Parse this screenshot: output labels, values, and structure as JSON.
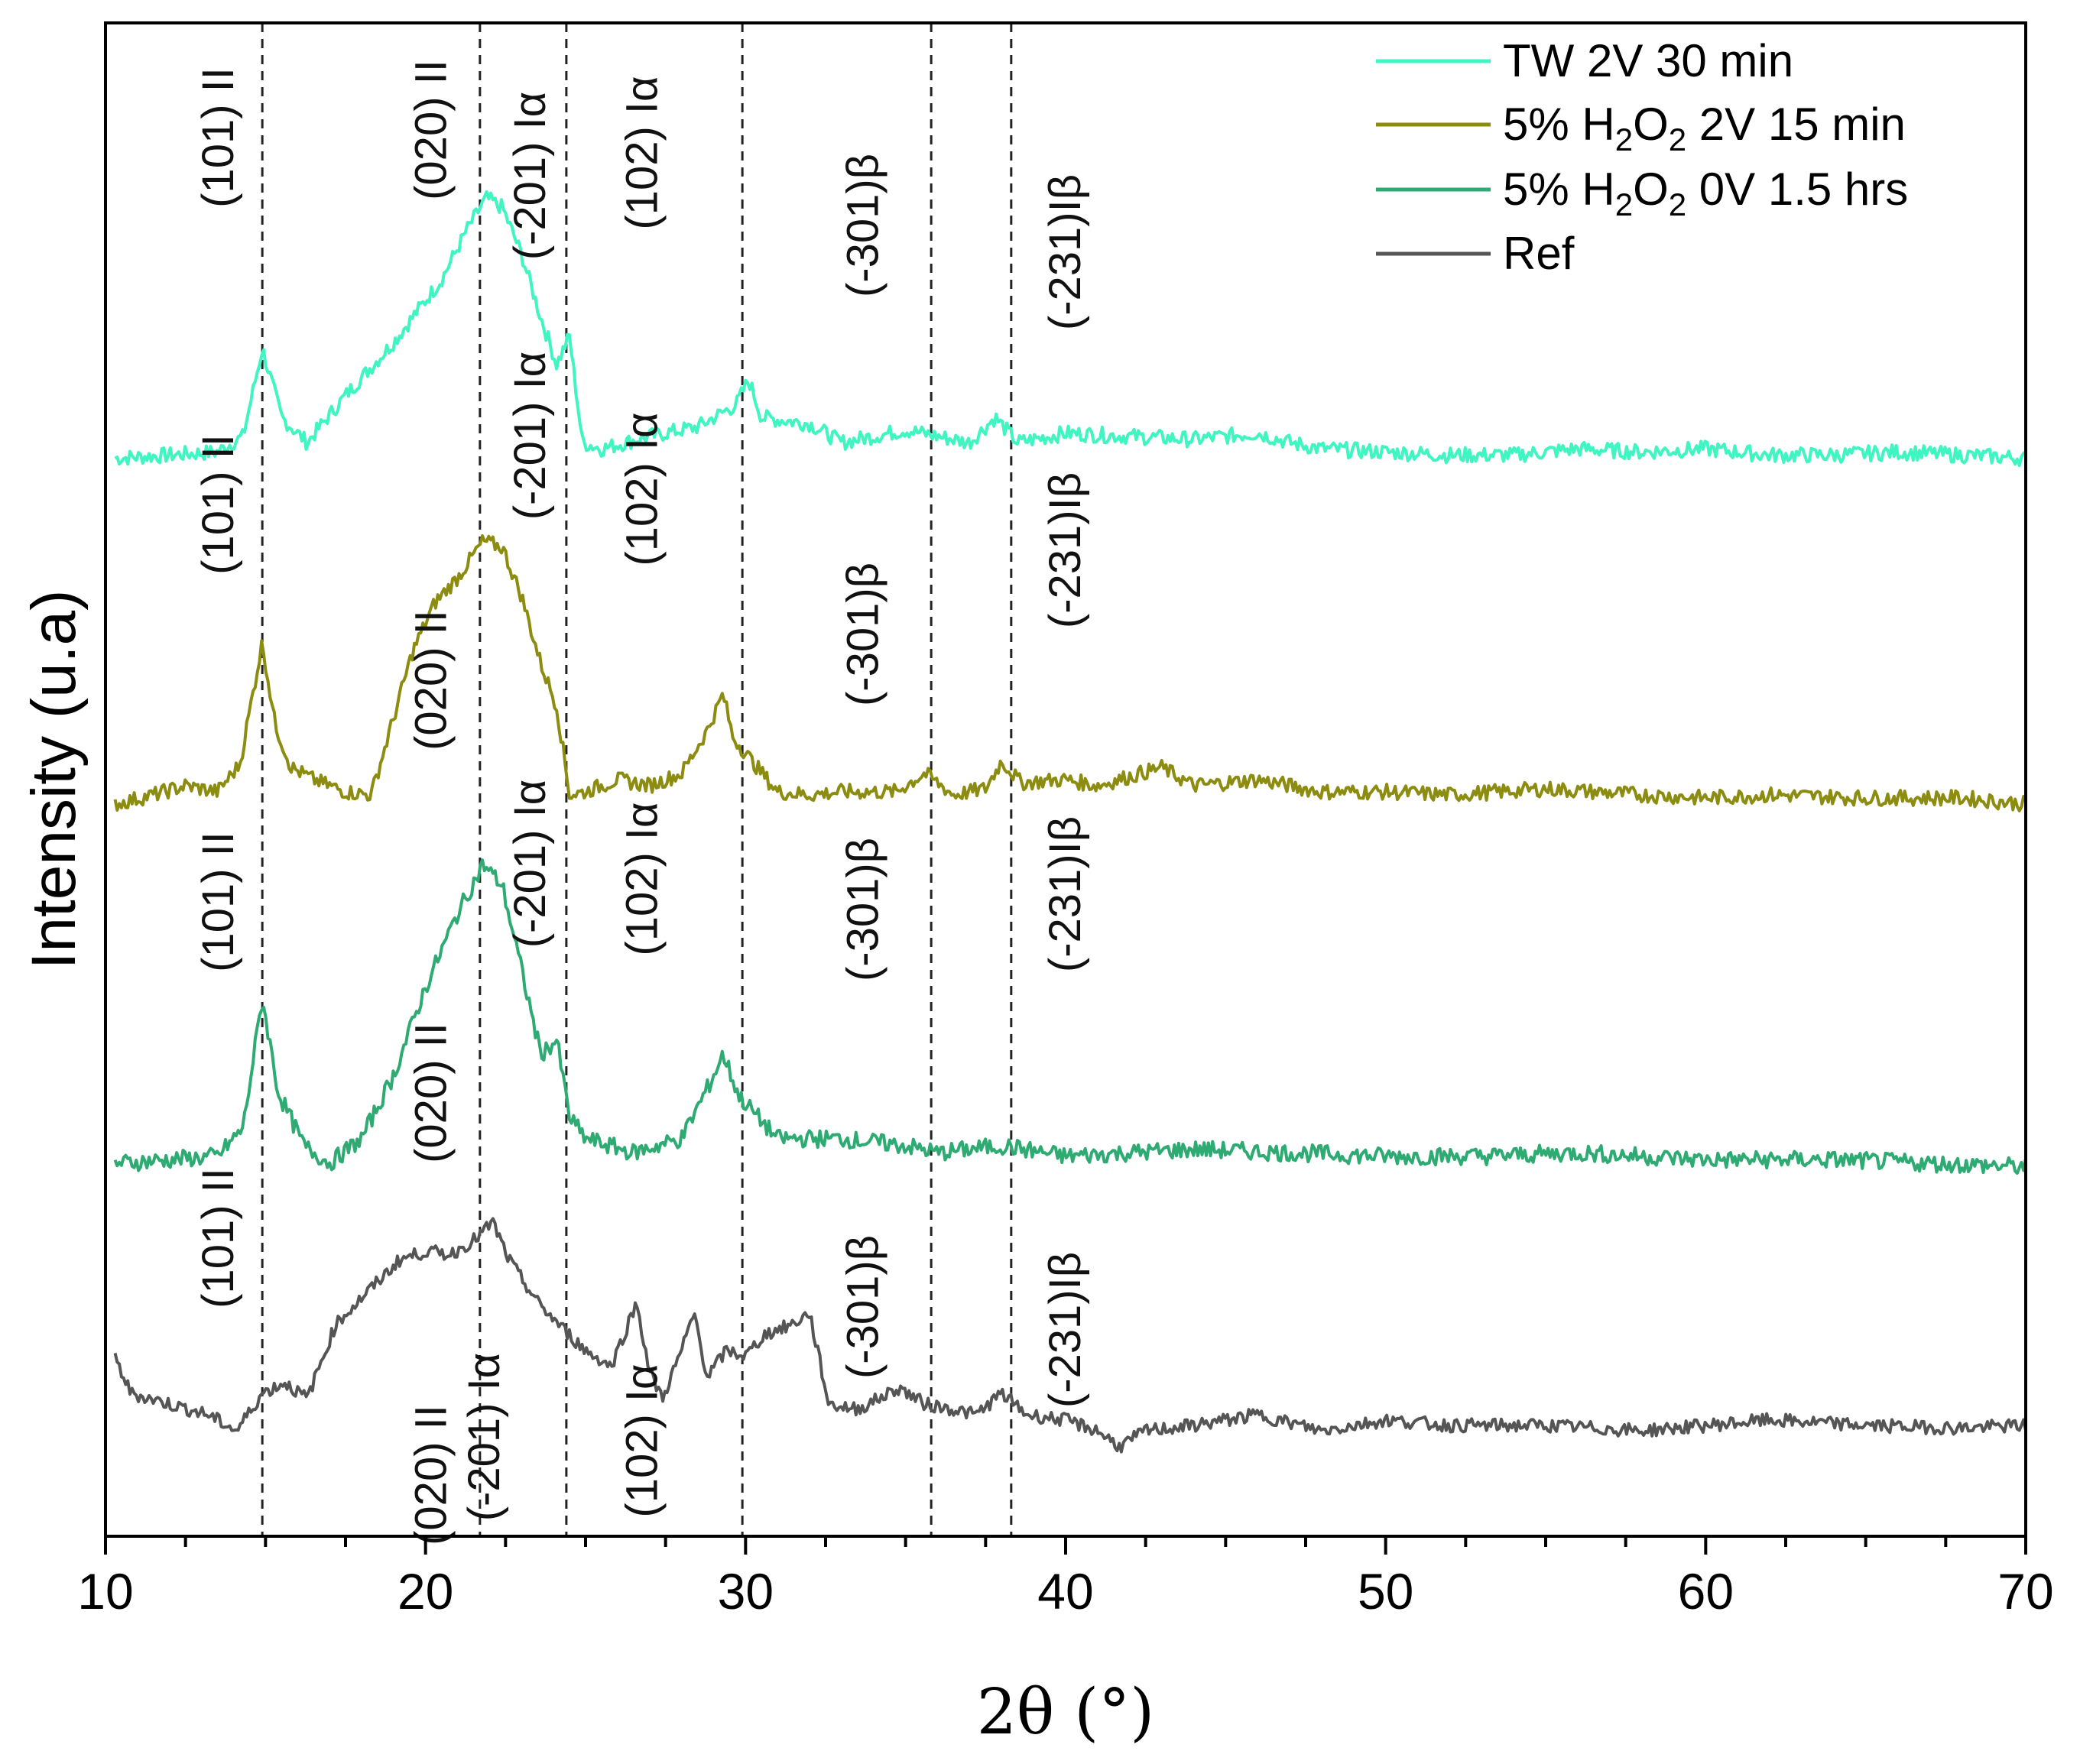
{
  "chart_data": {
    "type": "line",
    "title": "",
    "xlabel": "2θ (°)",
    "ylabel": "Intensity (u.a)",
    "xlim": [
      10,
      70
    ],
    "x_ticks": [
      10,
      20,
      30,
      40,
      50,
      60,
      70
    ],
    "grid": false,
    "legend_position": "top-right",
    "reference_lines_2theta": [
      14.9,
      21.7,
      24.4,
      29.9,
      35.8,
      38.3
    ],
    "annotations": [
      {
        "text": "(101) II",
        "x": 14.9
      },
      {
        "text": "(020) II",
        "x": 21.5
      },
      {
        "text": "(-201) Iα",
        "x": 24.4
      },
      {
        "text": "(102) Iα",
        "x": 28.0
      },
      {
        "text": "(-301)β",
        "x": 34.8
      },
      {
        "text": "(-231)Iβ",
        "x": 39.5
      }
    ],
    "series": [
      {
        "name": "TW 2V 30 min",
        "legend_parts": [
          "TW 2V 30 min"
        ],
        "color": "#3ff5c2",
        "x": [
          10.3,
          12,
          13.5,
          14.3,
          14.9,
          15.5,
          16.3,
          17.5,
          19,
          20.5,
          21.3,
          21.9,
          22.4,
          23,
          23.6,
          24.1,
          24.5,
          24.9,
          25.5,
          27,
          28.5,
          29.7,
          30.1,
          30.5,
          32,
          33,
          35,
          37,
          37.8,
          38.5,
          40,
          42,
          44,
          46,
          47,
          48,
          50,
          52,
          54,
          56,
          58,
          60,
          62,
          64,
          66,
          68,
          70
        ],
        "values": [
          0.05,
          0.06,
          0.07,
          0.12,
          0.4,
          0.18,
          0.1,
          0.25,
          0.42,
          0.62,
          0.78,
          0.88,
          0.85,
          0.7,
          0.5,
          0.35,
          0.44,
          0.1,
          0.08,
          0.12,
          0.15,
          0.22,
          0.3,
          0.18,
          0.16,
          0.1,
          0.14,
          0.1,
          0.18,
          0.1,
          0.13,
          0.12,
          0.11,
          0.13,
          0.1,
          0.08,
          0.07,
          0.06,
          0.06,
          0.08,
          0.07,
          0.08,
          0.06,
          0.06,
          0.07,
          0.06,
          0.05
        ]
      },
      {
        "name": "5% H2O2 2V 15 min",
        "legend_parts": [
          "5% H",
          "2",
          "O",
          "2",
          " 2V 15 min"
        ],
        "color": "#8c8c10",
        "x": [
          10.3,
          11.5,
          12.5,
          13.5,
          14.2,
          14.9,
          15.3,
          15.8,
          16.5,
          17.5,
          18.3,
          19,
          19.6,
          20.3,
          21,
          21.8,
          22.4,
          23,
          23.6,
          24.1,
          24.5,
          25,
          26,
          27,
          28,
          28.8,
          29.3,
          29.6,
          30.2,
          31,
          32,
          33,
          34.7,
          35.6,
          36.5,
          37.5,
          38,
          38.6,
          40,
          41,
          43,
          44,
          46,
          48,
          50,
          52,
          55,
          58,
          60,
          62,
          65,
          68,
          70
        ],
        "values": [
          0.02,
          0.05,
          0.08,
          0.06,
          0.15,
          0.55,
          0.28,
          0.14,
          0.1,
          0.06,
          0.05,
          0.3,
          0.52,
          0.68,
          0.76,
          0.88,
          0.86,
          0.7,
          0.48,
          0.34,
          0.05,
          0.06,
          0.1,
          0.08,
          0.12,
          0.26,
          0.38,
          0.24,
          0.16,
          0.06,
          0.05,
          0.06,
          0.06,
          0.12,
          0.05,
          0.07,
          0.16,
          0.09,
          0.1,
          0.08,
          0.14,
          0.08,
          0.1,
          0.06,
          0.06,
          0.05,
          0.07,
          0.05,
          0.04,
          0.05,
          0.04,
          0.04,
          0.02
        ]
      },
      {
        "name": "5% H2O2 0V 1.5 hrs",
        "legend_parts": [
          "5% H",
          "2",
          "O",
          "2",
          " 0V 1.5 hrs"
        ],
        "color": "#2eaa73",
        "x": [
          10.3,
          12,
          13.5,
          14.3,
          14.9,
          15.4,
          16.2,
          17,
          18,
          19,
          20,
          21,
          21.8,
          22.4,
          23,
          23.6,
          24.1,
          24.5,
          25,
          26.5,
          28,
          28.9,
          29.3,
          29.8,
          30.2,
          31,
          33,
          35,
          36,
          38,
          40,
          42,
          44,
          47,
          50,
          53,
          56,
          60,
          64,
          67,
          70
        ],
        "values": [
          0.05,
          0.06,
          0.07,
          0.15,
          0.52,
          0.25,
          0.1,
          0.05,
          0.12,
          0.3,
          0.55,
          0.76,
          0.9,
          0.84,
          0.6,
          0.36,
          0.4,
          0.18,
          0.12,
          0.08,
          0.12,
          0.28,
          0.36,
          0.24,
          0.2,
          0.12,
          0.12,
          0.1,
          0.08,
          0.1,
          0.07,
          0.08,
          0.09,
          0.08,
          0.07,
          0.07,
          0.08,
          0.06,
          0.06,
          0.05,
          0.04
        ]
      },
      {
        "name": "Ref",
        "legend_parts": [
          "Ref"
        ],
        "color": "#555555",
        "x": [
          10.3,
          10.8,
          12,
          13.2,
          14.1,
          14.9,
          15.6,
          16.3,
          17.2,
          18.2,
          19.2,
          20,
          20.8,
          21.6,
          22.1,
          22.6,
          23.5,
          24.3,
          25,
          25.8,
          26.6,
          27,
          27.4,
          28,
          28.4,
          28.8,
          29.4,
          30,
          30.6,
          31.5,
          32,
          32.6,
          33.5,
          34.8,
          35.6,
          36.5,
          37.2,
          38,
          38.8,
          40,
          41,
          41.7,
          42.5,
          44,
          46,
          48,
          50,
          52,
          55,
          58,
          60,
          62,
          65,
          68,
          70
        ],
        "values": [
          0.35,
          0.22,
          0.18,
          0.14,
          0.08,
          0.22,
          0.26,
          0.2,
          0.48,
          0.6,
          0.72,
          0.75,
          0.74,
          0.8,
          0.86,
          0.72,
          0.56,
          0.46,
          0.38,
          0.32,
          0.56,
          0.3,
          0.2,
          0.38,
          0.52,
          0.28,
          0.38,
          0.36,
          0.44,
          0.48,
          0.52,
          0.18,
          0.16,
          0.24,
          0.18,
          0.16,
          0.14,
          0.22,
          0.14,
          0.12,
          0.08,
          0.02,
          0.08,
          0.1,
          0.14,
          0.08,
          0.12,
          0.1,
          0.1,
          0.08,
          0.1,
          0.12,
          0.1,
          0.09,
          0.1
        ]
      }
    ]
  }
}
